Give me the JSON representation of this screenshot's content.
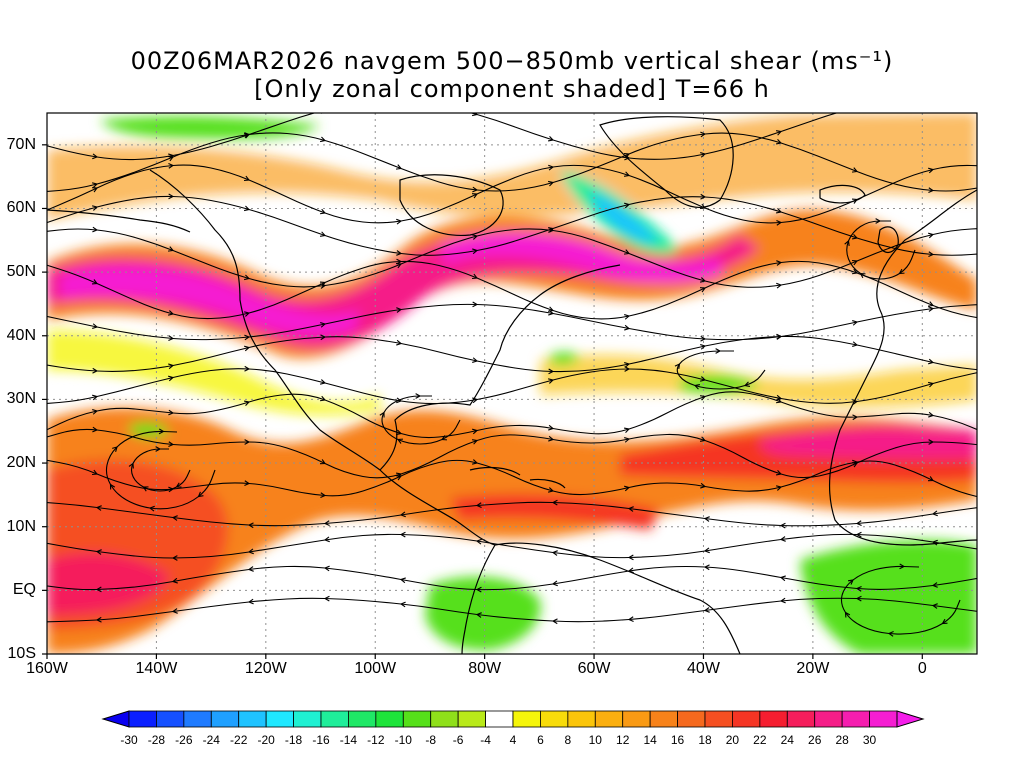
{
  "title": {
    "line1": "00Z06MAR2026 navgem 500−850mb vertical shear (ms⁻¹)",
    "line2": "[Only zonal component shaded] T=66 h"
  },
  "map": {
    "y_labels": [
      "70N",
      "60N",
      "50N",
      "40N",
      "30N",
      "20N",
      "10N",
      "EQ",
      "10S"
    ],
    "x_labels": [
      "160W",
      "140W",
      "120W",
      "100W",
      "80W",
      "60W",
      "40W",
      "20W",
      "0"
    ],
    "lat_range": [
      -10,
      75
    ],
    "lon_range": [
      -160,
      10
    ],
    "grid_lines": "dotted"
  },
  "colorbar": {
    "labels": [
      "-30",
      "-28",
      "-26",
      "-24",
      "-22",
      "-20",
      "-18",
      "-16",
      "-14",
      "-12",
      "-10",
      "-8",
      "-6",
      "-4",
      "4",
      "6",
      "8",
      "10",
      "12",
      "14",
      "16",
      "18",
      "20",
      "22",
      "24",
      "26",
      "28",
      "30"
    ],
    "colors": [
      "#0a1fff",
      "#1550ff",
      "#1f7bff",
      "#1fa0ff",
      "#1fc3ff",
      "#1fe8ff",
      "#1ff0d2",
      "#1fee9a",
      "#1fe866",
      "#1ee43a",
      "#56e01a",
      "#8fe01a",
      "#b9ea1a",
      "#ffffff",
      "#f5f50a",
      "#f8dc0a",
      "#fbc50a",
      "#fbaf0f",
      "#f99a14",
      "#f7821a",
      "#f5691e",
      "#f54f21",
      "#f53524",
      "#f51e30",
      "#f51e5c",
      "#f51e88",
      "#f51eaf",
      "#f51ed2"
    ],
    "under_color": "#0a00f0",
    "over_color": "#f51eea"
  }
}
